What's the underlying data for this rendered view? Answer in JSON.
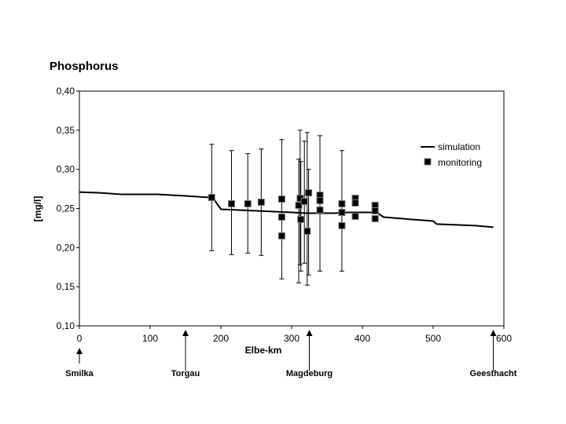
{
  "chart_data": {
    "type": "line",
    "title": "Phosphorus",
    "xlabel": "Elbe-km",
    "ylabel": "[mg/l]",
    "xlim": [
      0,
      600
    ],
    "ylim": [
      0.1,
      0.4
    ],
    "xticks": [
      "0",
      "100",
      "200",
      "300",
      "400",
      "500",
      "600"
    ],
    "yticks": [
      "0,10",
      "0,15",
      "0,20",
      "0,25",
      "0,30",
      "0,35",
      "0,40"
    ],
    "legend": {
      "position": "right",
      "entries": [
        "simulation",
        "monitoring"
      ]
    },
    "simulation": {
      "x": [
        0,
        30,
        60,
        110,
        150,
        185,
        190,
        200,
        250,
        300,
        320,
        360,
        380,
        420,
        430,
        470,
        500,
        505,
        560,
        585
      ],
      "y": [
        0.271,
        0.27,
        0.268,
        0.268,
        0.266,
        0.264,
        0.262,
        0.249,
        0.247,
        0.245,
        0.244,
        0.244,
        0.245,
        0.245,
        0.239,
        0.236,
        0.234,
        0.23,
        0.228,
        0.226
      ]
    },
    "monitoring": [
      {
        "x": 187,
        "y": 0.264,
        "lo": 0.196,
        "hi": 0.332
      },
      {
        "x": 215,
        "y": 0.256,
        "lo": 0.191,
        "hi": 0.324
      },
      {
        "x": 238,
        "y": 0.256,
        "lo": 0.193,
        "hi": 0.32
      },
      {
        "x": 257,
        "y": 0.258,
        "lo": 0.19,
        "hi": 0.326
      },
      {
        "x": 286,
        "y": 0.262,
        "lo": 0.16,
        "hi": 0.338
      },
      {
        "x": 286,
        "y": 0.239
      },
      {
        "x": 286,
        "y": 0.215
      },
      {
        "x": 310,
        "y": 0.254,
        "lo": 0.155,
        "hi": 0.313
      },
      {
        "x": 313,
        "y": 0.236,
        "lo": 0.17,
        "hi": 0.31
      },
      {
        "x": 312,
        "y": 0.263,
        "lo": 0.178,
        "hi": 0.35
      },
      {
        "x": 318,
        "y": 0.259,
        "lo": 0.18,
        "hi": 0.336
      },
      {
        "x": 322,
        "y": 0.221,
        "lo": 0.152,
        "hi": 0.347
      },
      {
        "x": 324,
        "y": 0.27,
        "lo": 0.165,
        "hi": 0.3
      },
      {
        "x": 340,
        "y": 0.267,
        "lo": 0.17,
        "hi": 0.343
      },
      {
        "x": 340,
        "y": 0.26
      },
      {
        "x": 340,
        "y": 0.248
      },
      {
        "x": 371,
        "y": 0.256,
        "lo": 0.17,
        "hi": 0.324
      },
      {
        "x": 371,
        "y": 0.245
      },
      {
        "x": 371,
        "y": 0.228
      },
      {
        "x": 390,
        "y": 0.263
      },
      {
        "x": 390,
        "y": 0.257
      },
      {
        "x": 390,
        "y": 0.24
      },
      {
        "x": 418,
        "y": 0.254
      },
      {
        "x": 418,
        "y": 0.247
      },
      {
        "x": 418,
        "y": 0.237
      }
    ],
    "annotations": [
      {
        "label": "Smilka",
        "x": 0
      },
      {
        "label": "Torgau",
        "x": 150
      },
      {
        "label": "Magdeburg",
        "x": 325
      },
      {
        "label": "Geesthacht",
        "x": 585
      }
    ]
  }
}
